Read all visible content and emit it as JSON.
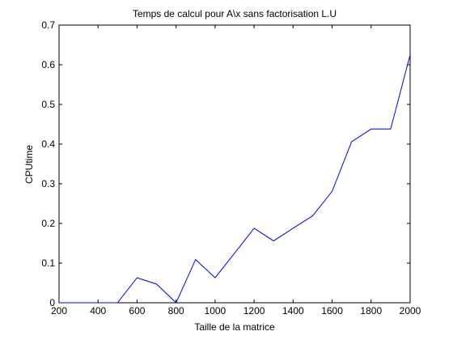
{
  "chart_data": {
    "type": "line",
    "title": "Temps de calcul pour A\\x sans factorisation L.U",
    "xlabel": "Taille de la matrice",
    "ylabel": "CPUtime",
    "xlim": [
      200,
      2000
    ],
    "ylim": [
      0,
      0.7
    ],
    "xticks": [
      200,
      400,
      600,
      800,
      1000,
      1200,
      1400,
      1600,
      1800,
      2000
    ],
    "yticks": [
      0,
      0.1,
      0.2,
      0.3,
      0.4,
      0.5,
      0.6,
      0.7
    ],
    "xtick_labels": [
      "200",
      "400",
      "600",
      "800",
      "1000",
      "1200",
      "1400",
      "1600",
      "1800",
      "2000"
    ],
    "ytick_labels": [
      "0",
      "0.1",
      "0.2",
      "0.3",
      "0.4",
      "0.5",
      "0.6",
      "0.7"
    ],
    "grid": false,
    "series": [
      {
        "color": "#0000ff",
        "x": [
          200,
          300,
          400,
          500,
          600,
          700,
          800,
          900,
          1000,
          1100,
          1200,
          1300,
          1400,
          1500,
          1600,
          1700,
          1800,
          1900,
          2000
        ],
        "y": [
          0,
          0,
          0,
          0,
          0.063,
          0.047,
          0,
          0.109,
          0.063,
          0.125,
          0.188,
          0.156,
          0.188,
          0.219,
          0.281,
          0.406,
          0.438,
          0.438,
          0.625
        ]
      }
    ]
  }
}
